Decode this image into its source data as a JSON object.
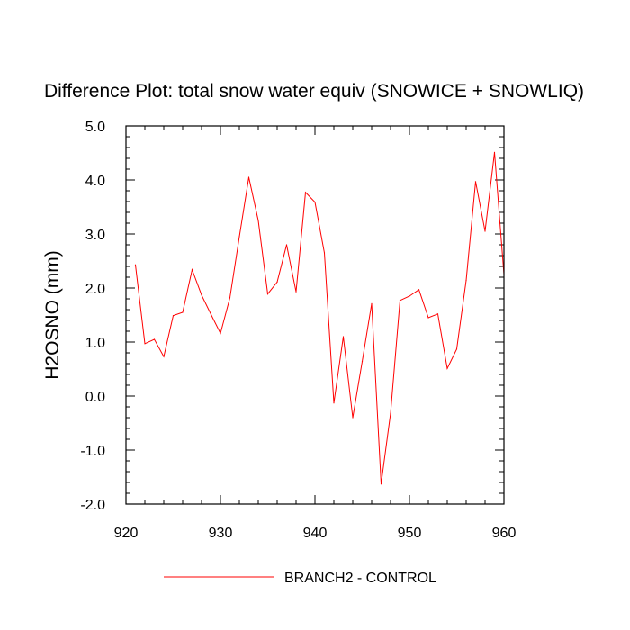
{
  "chart_data": {
    "type": "line",
    "title": "Difference Plot: total snow water equiv (SNOWICE + SNOWLIQ)",
    "xlabel": "",
    "ylabel": "H2OSNO  (mm)",
    "xlim": [
      920,
      960
    ],
    "ylim": [
      -2.0,
      5.0
    ],
    "x_ticks": [
      "920",
      "930",
      "940",
      "950",
      "960"
    ],
    "y_ticks": [
      "-2.0",
      "-1.0",
      "0.0",
      "1.0",
      "2.0",
      "3.0",
      "4.0",
      "5.0"
    ],
    "grid": false,
    "legend_position": "bottom-center",
    "series": [
      {
        "name": "BRANCH2 - CONTROL",
        "color": "#ff0000",
        "x": [
          921,
          922,
          923,
          924,
          925,
          926,
          927,
          928,
          929,
          930,
          931,
          932,
          933,
          934,
          935,
          936,
          937,
          938,
          939,
          940,
          941,
          942,
          943,
          944,
          945,
          946,
          947,
          948,
          949,
          950,
          951,
          952,
          953,
          954,
          955,
          956,
          957,
          958,
          959,
          960
        ],
        "values": [
          2.43,
          0.97,
          1.05,
          0.73,
          1.49,
          1.55,
          2.34,
          1.87,
          1.51,
          1.16,
          1.82,
          2.95,
          4.05,
          3.25,
          1.89,
          2.11,
          2.8,
          1.93,
          3.77,
          3.59,
          2.65,
          -0.13,
          1.1,
          -0.4,
          0.64,
          1.71,
          -1.63,
          -0.32,
          1.77,
          1.85,
          1.97,
          1.45,
          1.52,
          0.51,
          0.87,
          2.14,
          3.97,
          3.05,
          4.51,
          2.25
        ]
      }
    ]
  }
}
